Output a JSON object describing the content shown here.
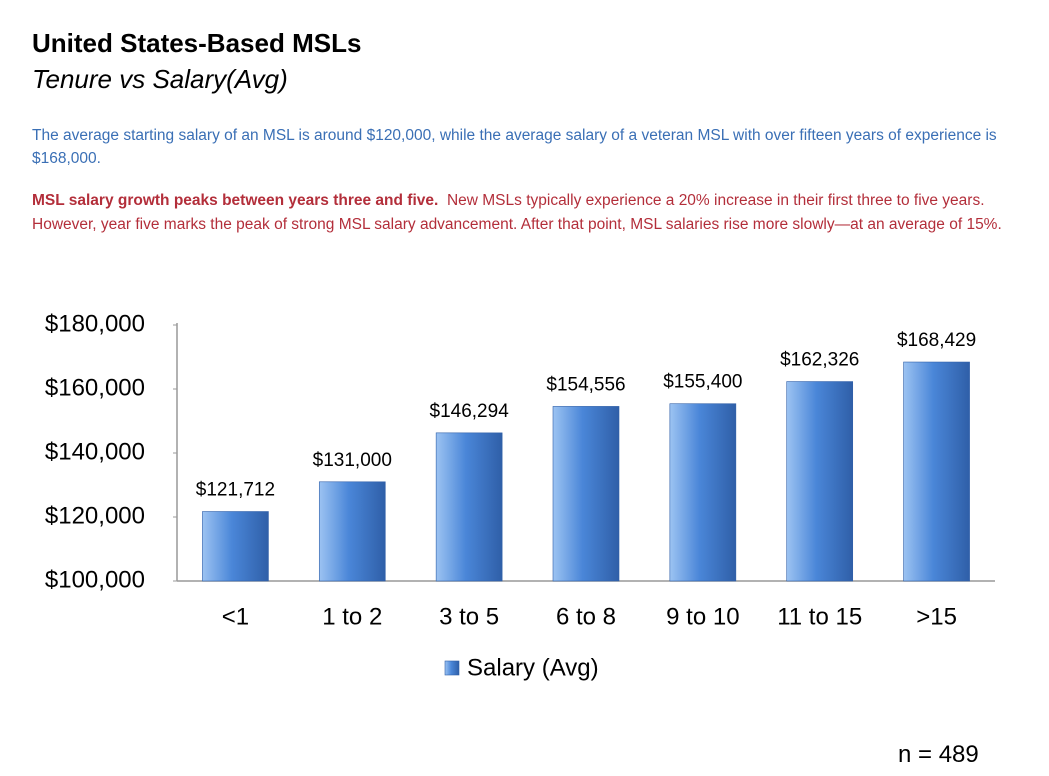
{
  "header": {
    "title": "United States-Based MSLs",
    "subtitle": "Tenure vs Salary(Avg)"
  },
  "intro": "The average starting salary of an MSL is around $120,000, while the average salary of a veteran MSL with over fifteen years of experience is $168,000.",
  "highlight": {
    "bold": "MSL salary growth peaks between years three and five.",
    "text": "New MSLs typically experience a 20% increase in their first three to five years. However, year five marks the peak of strong MSL salary advancement.  After that point, MSL salaries rise more slowly—at an average of 15%."
  },
  "chart_data": {
    "type": "bar",
    "categories": [
      "<1",
      "1 to 2",
      "3 to 5",
      "6 to 8",
      "9 to 10",
      "11 to 15",
      ">15"
    ],
    "series": [
      {
        "name": "Salary (Avg)",
        "color": "#4a86d8",
        "values": [
          121712,
          131000,
          146294,
          154556,
          155400,
          162326,
          168429
        ],
        "value_labels": [
          "$121,712",
          "$131,000",
          "$146,294",
          "$154,556",
          "$155,400",
          "$162,326",
          "$168,429"
        ]
      }
    ],
    "ylim": [
      100000,
      180000
    ],
    "yticks": [
      {
        "value": 100000,
        "label": "$100,000"
      },
      {
        "value": 120000,
        "label": "$120,000"
      },
      {
        "value": 140000,
        "label": "$140,000"
      },
      {
        "value": 160000,
        "label": "$160,000"
      },
      {
        "value": 180000,
        "label": "$180,000"
      }
    ],
    "grid": false,
    "legend": "bottom"
  },
  "footnote": "n = 489"
}
